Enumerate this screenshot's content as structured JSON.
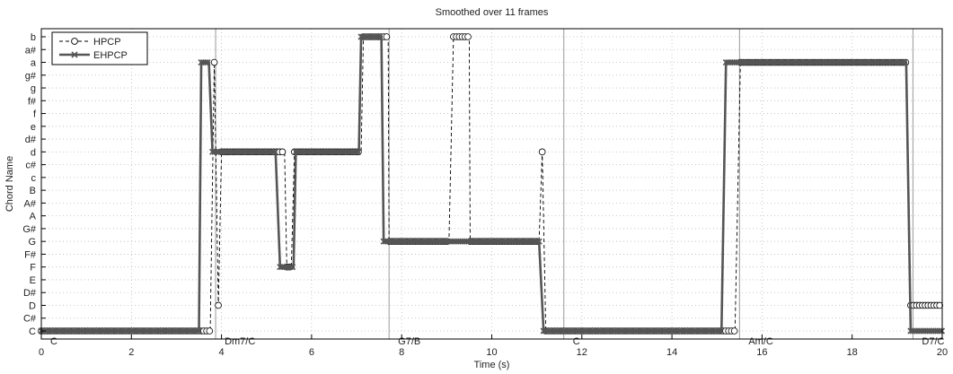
{
  "chart_data": {
    "type": "line",
    "title": "Smoothed over 11 frames",
    "xlabel": "Time (s)",
    "ylabel": "Chord Name",
    "xlim": [
      0,
      20
    ],
    "x_ticks": [
      0,
      2,
      4,
      6,
      8,
      10,
      12,
      14,
      16,
      18,
      20
    ],
    "categories": [
      "C",
      "C#",
      "D",
      "D#",
      "E",
      "F",
      "F#",
      "G",
      "G#",
      "A",
      "A#",
      "B",
      "c",
      "c#",
      "d",
      "d#",
      "e",
      "f",
      "f#",
      "g",
      "g#",
      "a",
      "a#",
      "b"
    ],
    "grid": true,
    "legend_position": "top-left",
    "sections": [
      {
        "label": "C",
        "x": 0
      },
      {
        "label": "Dm7/C",
        "x": 3.87
      },
      {
        "label": "G7/B",
        "x": 7.72
      },
      {
        "label": "C",
        "x": 11.6
      },
      {
        "label": "Am/C",
        "x": 15.5
      },
      {
        "label": "D7/C",
        "x": 19.35
      }
    ],
    "series": [
      {
        "name": "HPCP",
        "color": "#000000",
        "style": "dashed-circle",
        "segments": [
          {
            "x0": 0.0,
            "x1": 3.75,
            "y": "C"
          },
          {
            "x0": 3.84,
            "x1": 3.84,
            "y": "a"
          },
          {
            "x0": 3.93,
            "x1": 3.93,
            "y": "D"
          },
          {
            "x0": 4.0,
            "x1": 5.4,
            "y": "d"
          },
          {
            "x0": 5.45,
            "x1": 5.55,
            "y": "F"
          },
          {
            "x0": 5.62,
            "x1": 7.1,
            "y": "d"
          },
          {
            "x0": 7.15,
            "x1": 7.7,
            "y": "b"
          },
          {
            "x0": 7.72,
            "x1": 9.05,
            "y": "G"
          },
          {
            "x0": 9.15,
            "x1": 9.5,
            "y": "b"
          },
          {
            "x0": 9.52,
            "x1": 11.05,
            "y": "G"
          },
          {
            "x0": 11.12,
            "x1": 11.12,
            "y": "d"
          },
          {
            "x0": 11.2,
            "x1": 15.4,
            "y": "C"
          },
          {
            "x0": 15.52,
            "x1": 19.2,
            "y": "a"
          },
          {
            "x0": 19.3,
            "x1": 20.0,
            "y": "D"
          }
        ]
      },
      {
        "name": "EHPCP",
        "color": "#555555",
        "style": "solid-x",
        "segments": [
          {
            "x0": 0.0,
            "x1": 3.5,
            "y": "C"
          },
          {
            "x0": 3.55,
            "x1": 3.72,
            "y": "a"
          },
          {
            "x0": 3.8,
            "x1": 5.2,
            "y": "d"
          },
          {
            "x0": 5.3,
            "x1": 5.6,
            "y": "F"
          },
          {
            "x0": 5.65,
            "x1": 7.05,
            "y": "d"
          },
          {
            "x0": 7.1,
            "x1": 7.55,
            "y": "b"
          },
          {
            "x0": 7.6,
            "x1": 11.05,
            "y": "G"
          },
          {
            "x0": 11.15,
            "x1": 15.1,
            "y": "C"
          },
          {
            "x0": 15.2,
            "x1": 19.2,
            "y": "a"
          },
          {
            "x0": 19.3,
            "x1": 20.0,
            "y": "C"
          }
        ]
      }
    ]
  }
}
